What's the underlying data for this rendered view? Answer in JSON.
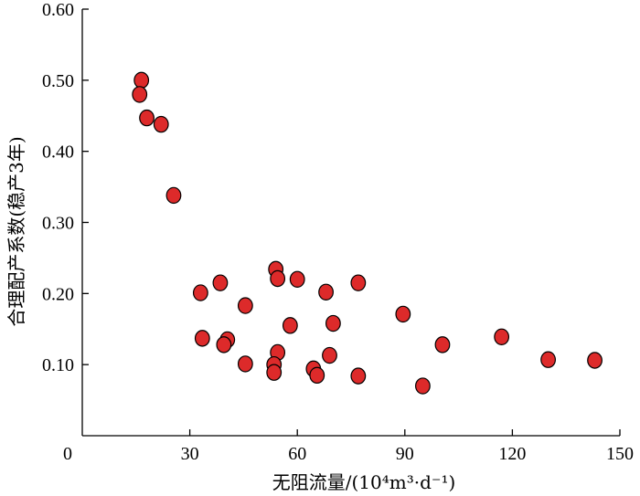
{
  "chart_data": {
    "type": "scatter",
    "title": "",
    "xlabel": "无阻流量/(10⁴m³·d⁻¹)",
    "ylabel": "合理配产系数(稳产3年)",
    "xlim": [
      0,
      150
    ],
    "ylim": [
      0,
      0.6
    ],
    "x_ticks": [
      0,
      30,
      60,
      90,
      120,
      150
    ],
    "y_ticks": [
      0.1,
      0.2,
      0.3,
      0.4,
      0.5,
      0.6
    ],
    "x_tick_labels": [
      "0",
      "30",
      "60",
      "90",
      "120",
      "150"
    ],
    "y_tick_labels": [
      "0.10",
      "0.20",
      "0.30",
      "0.40",
      "0.50",
      "0.60"
    ],
    "grid": false,
    "legend": "none",
    "marker_color": "#dd2a2a",
    "marker_edge_color": "#000000",
    "series": [
      {
        "points": [
          {
            "x": 16.5,
            "y": 0.5
          },
          {
            "x": 16.0,
            "y": 0.48
          },
          {
            "x": 18.0,
            "y": 0.447
          },
          {
            "x": 22.0,
            "y": 0.438
          },
          {
            "x": 25.5,
            "y": 0.338
          },
          {
            "x": 54.0,
            "y": 0.234
          },
          {
            "x": 54.5,
            "y": 0.221
          },
          {
            "x": 60.0,
            "y": 0.22
          },
          {
            "x": 38.5,
            "y": 0.215
          },
          {
            "x": 77.0,
            "y": 0.215
          },
          {
            "x": 33.0,
            "y": 0.201
          },
          {
            "x": 68.0,
            "y": 0.202
          },
          {
            "x": 45.5,
            "y": 0.183
          },
          {
            "x": 89.5,
            "y": 0.171
          },
          {
            "x": 70.0,
            "y": 0.158
          },
          {
            "x": 58.0,
            "y": 0.155
          },
          {
            "x": 117.0,
            "y": 0.139
          },
          {
            "x": 33.5,
            "y": 0.137
          },
          {
            "x": 40.5,
            "y": 0.135
          },
          {
            "x": 39.5,
            "y": 0.128
          },
          {
            "x": 100.5,
            "y": 0.128
          },
          {
            "x": 54.5,
            "y": 0.117
          },
          {
            "x": 69.0,
            "y": 0.113
          },
          {
            "x": 130.0,
            "y": 0.107
          },
          {
            "x": 143.0,
            "y": 0.106
          },
          {
            "x": 45.5,
            "y": 0.101
          },
          {
            "x": 53.5,
            "y": 0.1
          },
          {
            "x": 53.5,
            "y": 0.089
          },
          {
            "x": 64.5,
            "y": 0.094
          },
          {
            "x": 65.5,
            "y": 0.085
          },
          {
            "x": 77.0,
            "y": 0.084
          },
          {
            "x": 95.0,
            "y": 0.07
          }
        ]
      }
    ]
  }
}
